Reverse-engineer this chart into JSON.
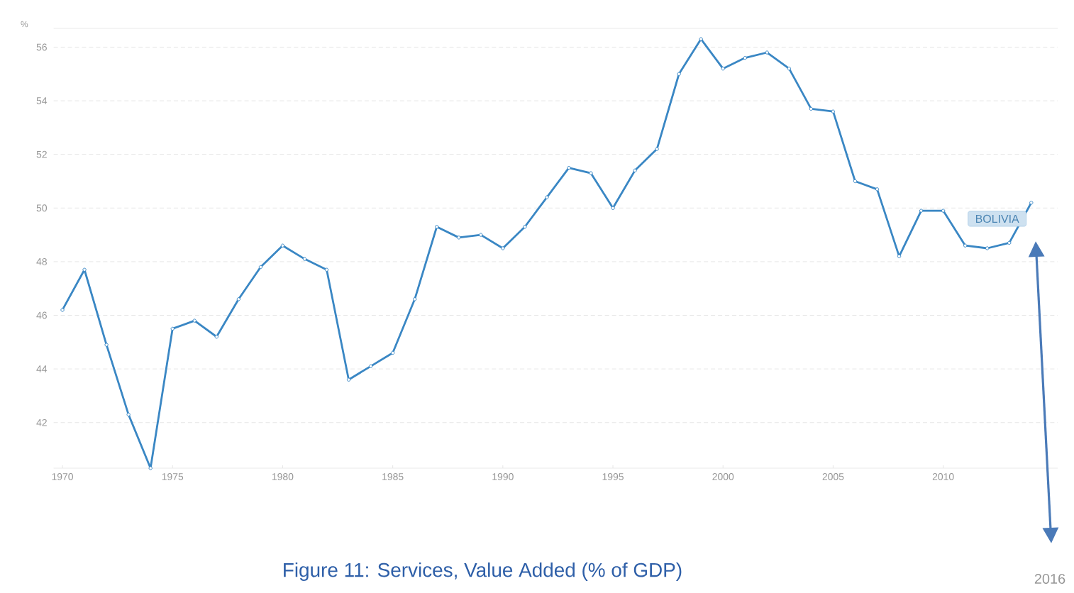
{
  "chart_data": {
    "type": "line",
    "title": "Figure 11: Services, Value Added (% of GDP)",
    "ylabel": "%",
    "x": [
      1970,
      1971,
      1972,
      1973,
      1974,
      1975,
      1976,
      1977,
      1978,
      1979,
      1980,
      1981,
      1982,
      1983,
      1984,
      1985,
      1986,
      1987,
      1988,
      1989,
      1990,
      1991,
      1992,
      1993,
      1994,
      1995,
      1996,
      1997,
      1998,
      1999,
      2000,
      2001,
      2002,
      2003,
      2004,
      2005,
      2006,
      2007,
      2008,
      2009,
      2010,
      2011,
      2012,
      2013,
      2014
    ],
    "series": [
      {
        "name": "BOLIVIA",
        "color": "#3a87c4",
        "values": [
          46.2,
          47.7,
          44.9,
          42.3,
          40.3,
          45.5,
          45.8,
          45.2,
          46.6,
          47.8,
          48.6,
          48.1,
          47.7,
          43.6,
          44.1,
          44.6,
          46.6,
          49.3,
          48.9,
          49.0,
          48.5,
          49.3,
          50.4,
          51.5,
          51.3,
          50.0,
          51.4,
          52.2,
          55.0,
          56.3,
          55.2,
          55.6,
          55.8,
          55.2,
          53.7,
          53.6,
          51.0,
          50.7,
          48.2,
          49.9,
          49.9,
          48.6,
          48.5,
          48.7,
          50.2
        ]
      }
    ],
    "xlim": [
      1969.6,
      2015.2
    ],
    "ylim": [
      40.3,
      56.7
    ],
    "xticks": [
      1970,
      1975,
      1980,
      1985,
      1990,
      1995,
      2000,
      2005,
      2010
    ],
    "yticks": [
      42,
      44,
      46,
      48,
      50,
      52,
      54,
      56
    ],
    "grid": "y",
    "legend": false,
    "marker": "circle",
    "line_style": "solid",
    "annotations": [
      "2016"
    ]
  }
}
